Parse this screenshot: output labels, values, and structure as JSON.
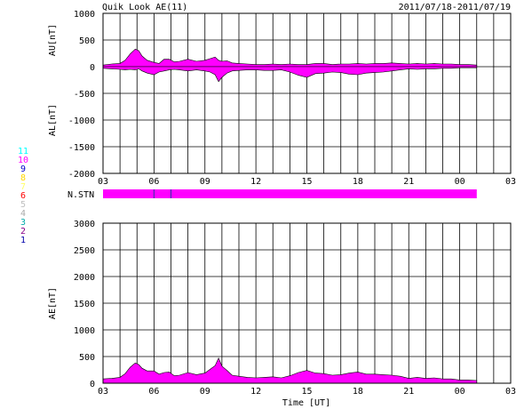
{
  "header": {
    "title": "Quik Look AE(11)",
    "date_range": "2011/07/18-2011/07/19"
  },
  "colors": {
    "fill": "#ff00ff",
    "axis": "#000000",
    "background": "#ffffff"
  },
  "station_legend": {
    "items": [
      {
        "label": "11",
        "color": "#00ffff"
      },
      {
        "label": "10",
        "color": "#ff00ff"
      },
      {
        "label": "9",
        "color": "#0000cc"
      },
      {
        "label": "8",
        "color": "#ffd700"
      },
      {
        "label": "7",
        "color": "#ffff66"
      },
      {
        "label": "6",
        "color": "#ff0000"
      },
      {
        "label": "5",
        "color": "#c0c0c0"
      },
      {
        "label": "4",
        "color": "#aaaaaa"
      },
      {
        "label": "3",
        "color": "#00aaaa"
      },
      {
        "label": "2",
        "color": "#880088"
      },
      {
        "label": "1",
        "color": "#0000aa"
      }
    ]
  },
  "station_bar": {
    "label": "N.STN",
    "end_hour": 25,
    "markers_hours": [
      6,
      7
    ]
  },
  "chart_data": [
    {
      "type": "area",
      "name": "AU/AL",
      "ylabel_upper": "AU[nT]",
      "ylabel_lower": "AL[nT]",
      "xlim": [
        3,
        27
      ],
      "ylim": [
        -2000,
        1000
      ],
      "yticks": [
        1000,
        500,
        0,
        -500,
        -1000,
        -1500,
        -2000
      ],
      "xtick_labels": [
        "03",
        "06",
        "09",
        "12",
        "15",
        "18",
        "21",
        "00",
        "03"
      ],
      "grid": true,
      "x_hours": [
        3,
        3.5,
        4,
        4.3,
        4.6,
        4.9,
        5.1,
        5.3,
        5.6,
        6,
        6.3,
        6.6,
        6.9,
        7.2,
        7.5,
        8,
        8.5,
        9,
        9.3,
        9.6,
        9.8,
        10,
        10.3,
        10.6,
        11,
        11.5,
        12,
        12.5,
        13,
        13.5,
        14,
        14.5,
        15,
        15.5,
        16,
        16.5,
        17,
        17.5,
        18,
        18.5,
        19,
        19.5,
        20,
        20.5,
        21,
        21.5,
        22,
        22.5,
        23,
        23.5,
        24,
        24.5,
        25
      ],
      "au": [
        30,
        50,
        60,
        120,
        240,
        330,
        300,
        200,
        120,
        80,
        60,
        140,
        140,
        90,
        100,
        140,
        100,
        120,
        150,
        180,
        120,
        100,
        110,
        70,
        60,
        50,
        40,
        40,
        50,
        40,
        50,
        40,
        40,
        60,
        60,
        40,
        50,
        50,
        60,
        50,
        60,
        60,
        70,
        60,
        50,
        60,
        50,
        60,
        50,
        50,
        40,
        40,
        30
      ],
      "al": [
        -30,
        -40,
        -50,
        -60,
        -50,
        -60,
        -40,
        -80,
        -120,
        -150,
        -100,
        -80,
        -60,
        -50,
        -60,
        -80,
        -60,
        -80,
        -100,
        -150,
        -280,
        -200,
        -120,
        -80,
        -70,
        -60,
        -60,
        -70,
        -70,
        -60,
        -100,
        -160,
        -200,
        -130,
        -120,
        -100,
        -110,
        -140,
        -150,
        -120,
        -110,
        -100,
        -80,
        -60,
        -40,
        -50,
        -40,
        -40,
        -30,
        -30,
        -20,
        -20,
        -20
      ]
    },
    {
      "type": "area",
      "name": "AE",
      "ylabel": "AE[nT]",
      "xlabel": "Time [UT]",
      "xlim": [
        3,
        27
      ],
      "ylim": [
        0,
        3000
      ],
      "yticks": [
        3000,
        2500,
        2000,
        1500,
        1000,
        500,
        0
      ],
      "xtick_labels": [
        "03",
        "06",
        "09",
        "12",
        "15",
        "18",
        "21",
        "00",
        "03"
      ],
      "grid": true,
      "x_hours": [
        3,
        3.5,
        4,
        4.3,
        4.6,
        4.9,
        5.1,
        5.3,
        5.6,
        6,
        6.3,
        6.6,
        6.9,
        7.2,
        7.5,
        8,
        8.5,
        9,
        9.3,
        9.6,
        9.8,
        10,
        10.3,
        10.6,
        11,
        11.5,
        12,
        12.5,
        13,
        13.5,
        14,
        14.5,
        15,
        15.5,
        16,
        16.5,
        17,
        17.5,
        18,
        18.5,
        19,
        19.5,
        20,
        20.5,
        21,
        21.5,
        22,
        22.5,
        23,
        23.5,
        24,
        24.5,
        25
      ],
      "values": [
        80,
        90,
        110,
        180,
        300,
        380,
        350,
        280,
        230,
        230,
        170,
        200,
        210,
        140,
        150,
        200,
        160,
        190,
        260,
        330,
        470,
        320,
        240,
        150,
        130,
        110,
        100,
        110,
        120,
        100,
        140,
        200,
        240,
        190,
        180,
        150,
        160,
        190,
        210,
        170,
        170,
        160,
        150,
        130,
        90,
        110,
        90,
        100,
        80,
        80,
        60,
        60,
        50
      ]
    }
  ]
}
